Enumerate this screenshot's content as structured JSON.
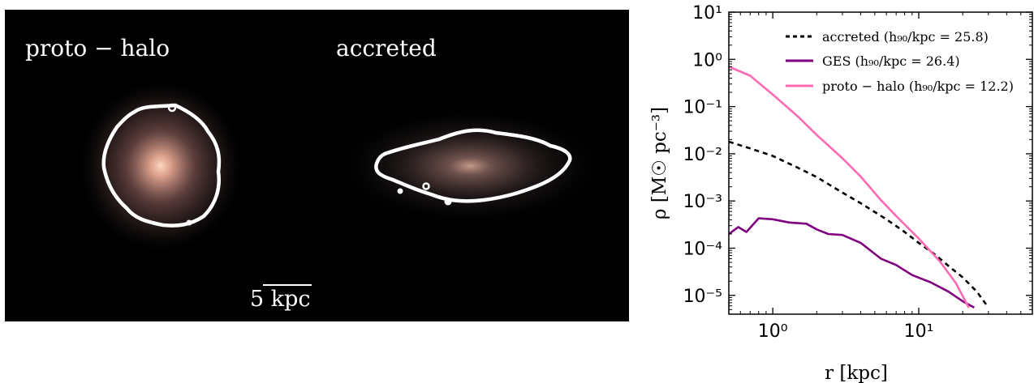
{
  "image_panel": {
    "label_left": "proto − halo",
    "label_right": "accreted",
    "scalebar_label": "5 kpc"
  },
  "colors": {
    "accreted": "#000000",
    "GES": "#800080",
    "proto_halo": "#ff69b4",
    "contour": "#ffffff",
    "panel_background": "#000000"
  },
  "chart_data": {
    "type": "line",
    "xlabel": "r [kpc]",
    "ylabel": "ρ [M☉ pc⁻³]",
    "x_scale": "log",
    "y_scale": "log",
    "xlim": [
      0.5,
      60
    ],
    "ylim": [
      4e-06,
      10
    ],
    "x_ticks": [
      {
        "value": 1,
        "label": "10⁰"
      },
      {
        "value": 10,
        "label": "10¹"
      }
    ],
    "y_ticks": [
      {
        "value": 10,
        "label": "10¹"
      },
      {
        "value": 1,
        "label": "10⁰"
      },
      {
        "value": 0.1,
        "label": "10⁻¹"
      },
      {
        "value": 0.01,
        "label": "10⁻²"
      },
      {
        "value": 0.001,
        "label": "10⁻³"
      },
      {
        "value": 0.0001,
        "label": "10⁻⁴"
      },
      {
        "value": 1e-05,
        "label": "10⁻⁵"
      }
    ],
    "legend_position": "top-right",
    "grid": false,
    "series": [
      {
        "name": "accreted (h₉₀/kpc = 25.8)",
        "style": "dashed",
        "color": "#000000",
        "x": [
          0.5,
          0.7,
          1.0,
          1.5,
          2.0,
          3.0,
          4.0,
          6.0,
          8.0,
          10.0,
          13.0,
          16.0,
          20.0,
          25.0,
          30.0
        ],
        "y": [
          0.018,
          0.013,
          0.009,
          0.005,
          0.0032,
          0.0015,
          0.0009,
          0.00041,
          0.00022,
          0.00013,
          7.2e-05,
          4.2e-05,
          2.4e-05,
          1.2e-05,
          5.5e-06
        ]
      },
      {
        "name": "GES (h₉₀/kpc = 26.4)",
        "style": "solid",
        "color": "#800080",
        "x": [
          0.5,
          0.58,
          0.66,
          0.8,
          1.0,
          1.3,
          1.7,
          2.0,
          2.4,
          3.0,
          4.0,
          5.5,
          7.0,
          9.0,
          12.0,
          16.0,
          20.0,
          24.0
        ],
        "y": [
          0.0002,
          0.00028,
          0.00022,
          0.00043,
          0.00041,
          0.00035,
          0.00033,
          0.00025,
          0.0002,
          0.00019,
          0.00013,
          6e-05,
          4.4e-05,
          2.7e-05,
          1.9e-05,
          1.2e-05,
          7.5e-06,
          5.5e-06
        ]
      },
      {
        "name": "proto − halo (h₉₀/kpc = 12.2)",
        "style": "solid",
        "color": "#ff69b4",
        "x": [
          0.5,
          0.7,
          1.0,
          1.5,
          2.0,
          3.0,
          4.0,
          5.5,
          7.0,
          10.0,
          14.0,
          18.0,
          22.0
        ],
        "y": [
          0.7,
          0.45,
          0.18,
          0.06,
          0.025,
          0.008,
          0.0033,
          0.00105,
          0.00048,
          0.00016,
          5.2e-05,
          1.8e-05,
          5.5e-06
        ]
      }
    ]
  }
}
